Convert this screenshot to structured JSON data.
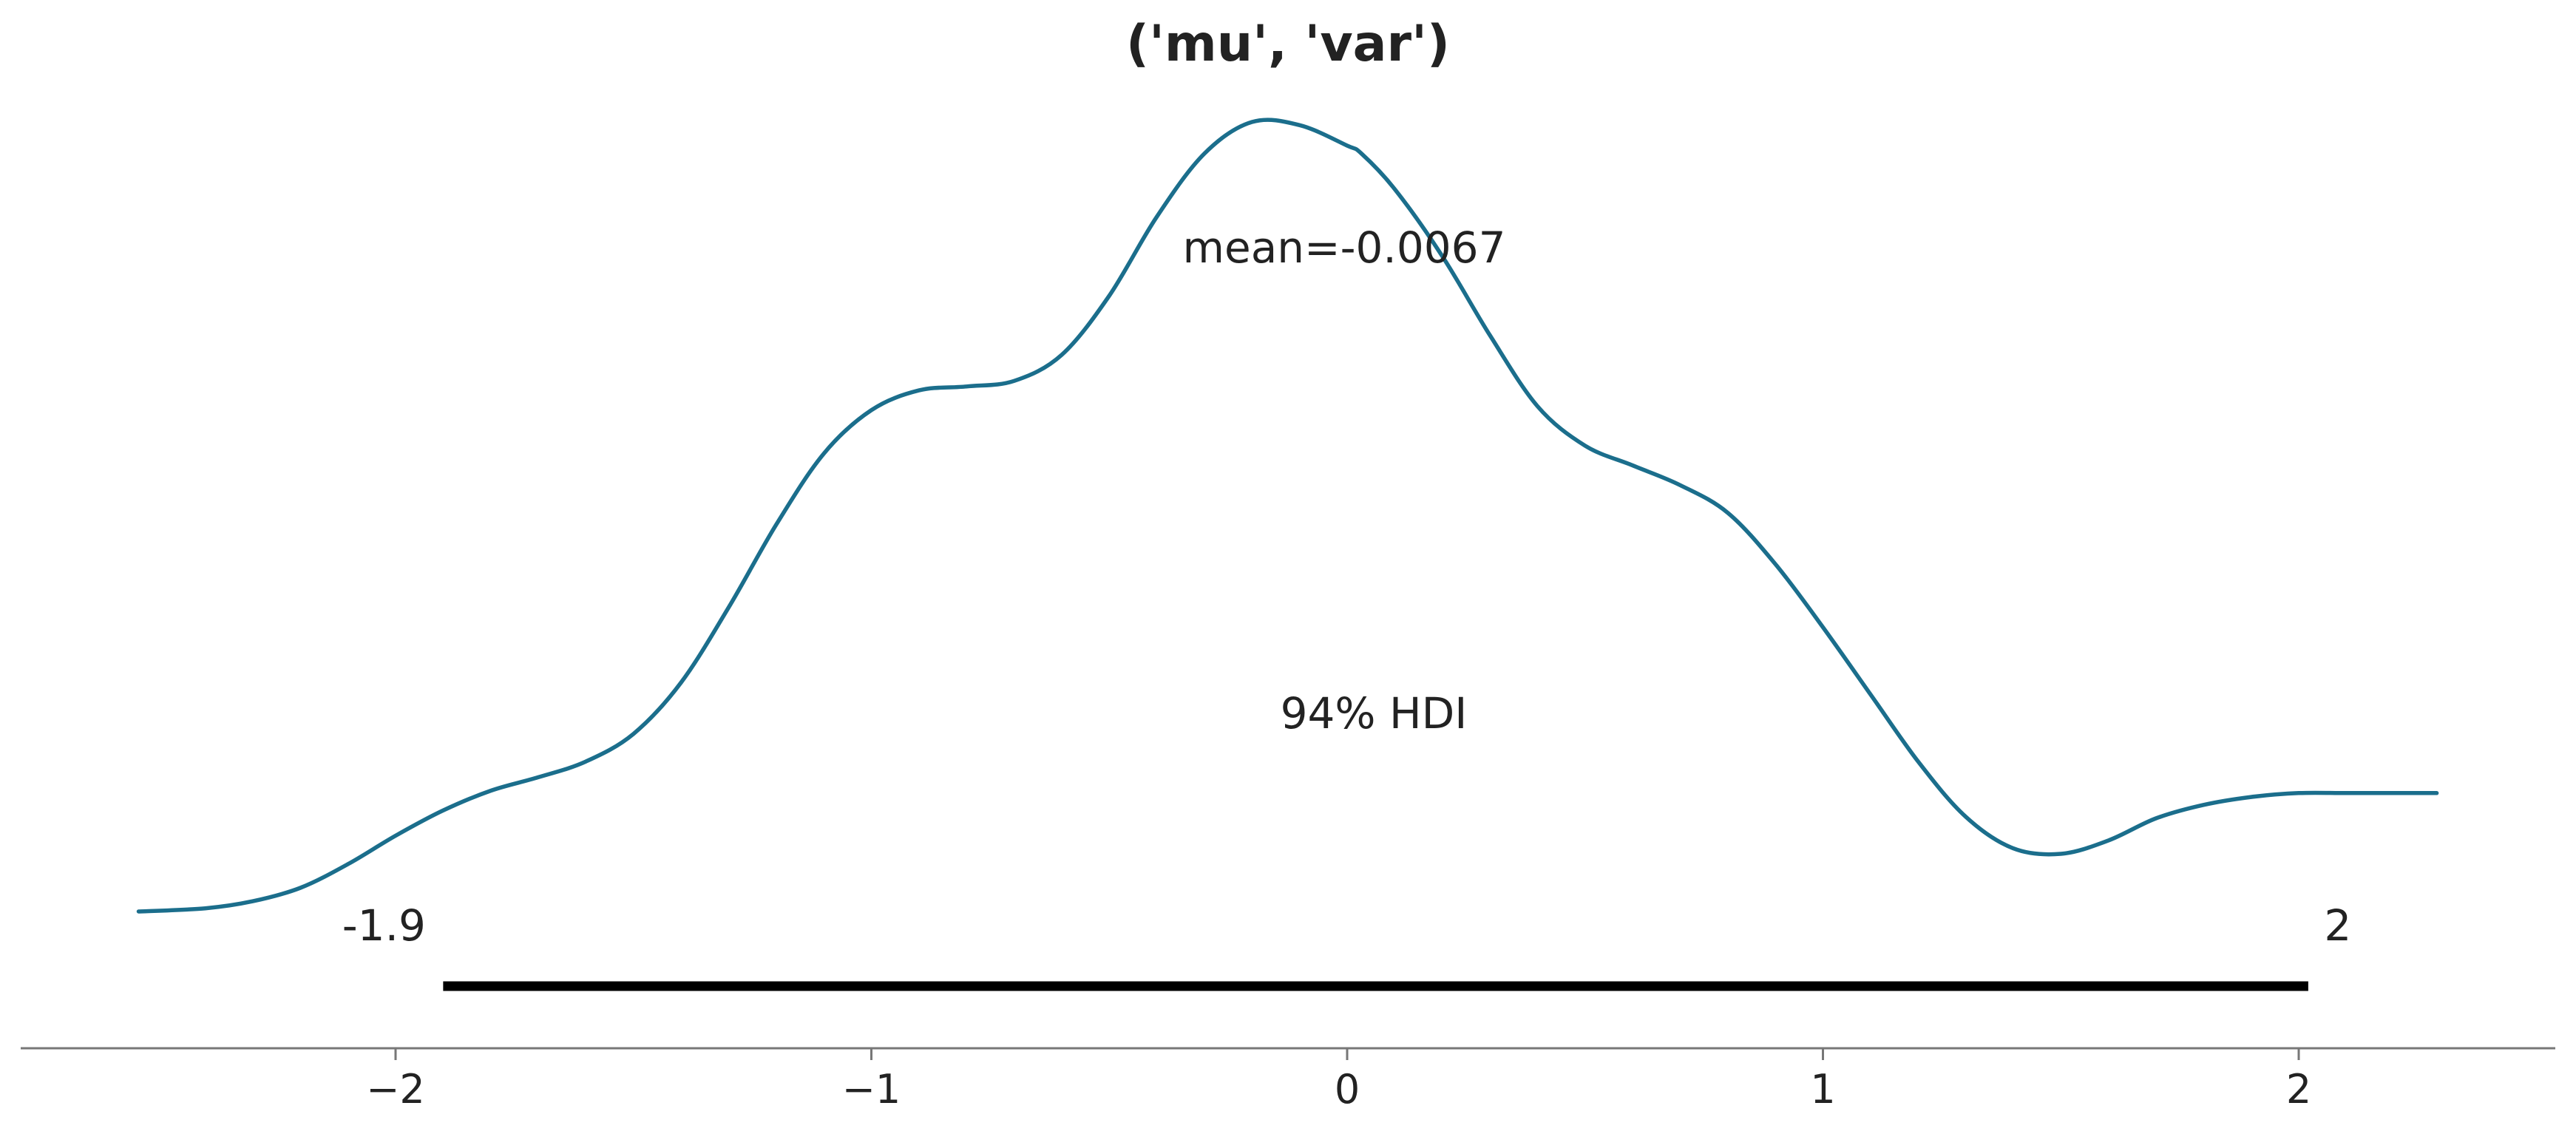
{
  "chart_data": {
    "type": "line",
    "title": "('mu', 'var')",
    "xlabel": "",
    "ylabel": "",
    "xlim": [
      -2.6,
      2.52
    ],
    "ylim": [
      0,
      1.0
    ],
    "grid": false,
    "legend": "none",
    "series": [
      {
        "color": "#1b6e8c",
        "x": [
          -2.54,
          -2.4,
          -2.3,
          -2.2,
          -2.1,
          -2.0,
          -1.9,
          -1.8,
          -1.7,
          -1.6,
          -1.5,
          -1.4,
          -1.3,
          -1.2,
          -1.1,
          -1.0,
          -0.9,
          -0.8,
          -0.7,
          -0.6,
          -0.5,
          -0.4,
          -0.3,
          -0.2,
          -0.1,
          0.0,
          0.03,
          0.1,
          0.2,
          0.3,
          0.4,
          0.5,
          0.6,
          0.7,
          0.8,
          0.9,
          1.0,
          1.1,
          1.2,
          1.3,
          1.4,
          1.5,
          1.6,
          1.7,
          1.8,
          1.9,
          2.0,
          2.1,
          2.2,
          2.29
        ],
        "y": [
          0.0,
          0.004,
          0.013,
          0.03,
          0.06,
          0.096,
          0.128,
          0.153,
          0.17,
          0.19,
          0.225,
          0.29,
          0.385,
          0.49,
          0.58,
          0.635,
          0.66,
          0.665,
          0.672,
          0.705,
          0.78,
          0.88,
          0.96,
          1.0,
          0.996,
          0.97,
          0.96,
          0.915,
          0.83,
          0.73,
          0.64,
          0.59,
          0.565,
          0.54,
          0.505,
          0.44,
          0.36,
          0.275,
          0.19,
          0.12,
          0.08,
          0.073,
          0.09,
          0.118,
          0.135,
          0.145,
          0.15,
          0.15,
          0.15,
          0.15
        ]
      }
    ],
    "xticks": [
      -2,
      -1,
      0,
      1,
      2
    ],
    "xtick_labels": [
      "−2",
      "−1",
      "0",
      "1",
      "2"
    ],
    "mean_label": "mean=-0.0067",
    "hdi": {
      "label": "94% HDI",
      "low": -1.9,
      "high": 2.02,
      "low_label": "-1.9",
      "high_label": "2"
    }
  }
}
